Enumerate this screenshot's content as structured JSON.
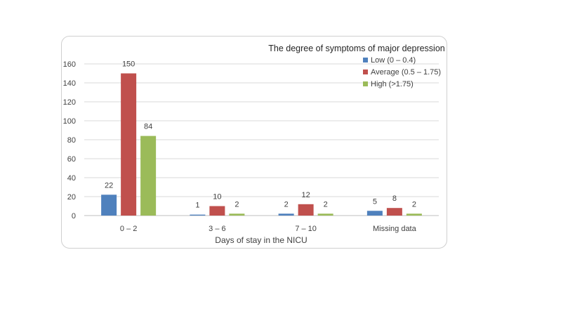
{
  "chart_data": {
    "type": "bar",
    "title": "The degree  of symptoms of major depression",
    "xlabel": "Days of stay in the  NICU",
    "ylabel": "",
    "categories": [
      "0 – 2",
      "3 – 6",
      "7 – 10",
      "Missing data"
    ],
    "series": [
      {
        "name": "Low (0 – 0.4)",
        "color": "#4f81bd",
        "values": [
          22,
          1,
          2,
          5
        ]
      },
      {
        "name": "Average (0.5 – 1.75)",
        "color": "#c0504d",
        "values": [
          150,
          10,
          12,
          8
        ]
      },
      {
        "name": "High (>1.75)",
        "color": "#9bbb59",
        "values": [
          84,
          2,
          2,
          2
        ]
      }
    ],
    "ylim": [
      0,
      160
    ],
    "yticks": [
      0,
      20,
      40,
      60,
      80,
      100,
      120,
      140,
      160
    ],
    "grid": true,
    "legend_position": "top-right"
  }
}
